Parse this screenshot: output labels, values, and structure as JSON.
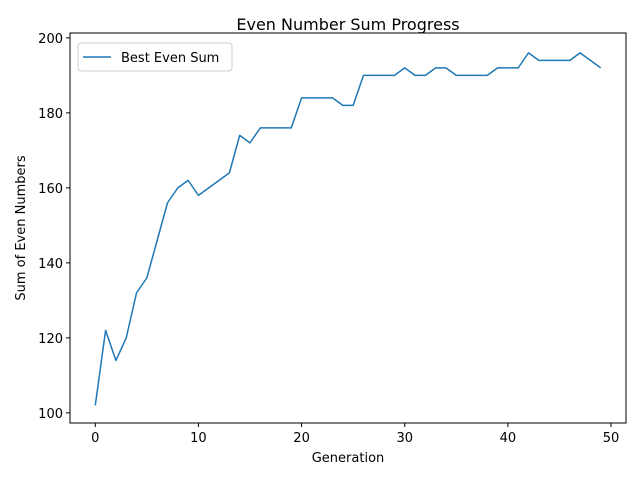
{
  "chart_data": {
    "type": "line",
    "title": "Even Number Sum Progress",
    "xlabel": "Generation",
    "ylabel": "Sum of Even Numbers",
    "xlim": [
      -2.45,
      51.45
    ],
    "ylim": [
      97.3,
      201.3
    ],
    "xticks": [
      0,
      10,
      20,
      30,
      40,
      50
    ],
    "yticks": [
      100,
      120,
      140,
      160,
      180,
      200
    ],
    "grid": false,
    "legend_position": "top-left",
    "x": [
      0,
      1,
      2,
      3,
      4,
      5,
      6,
      7,
      8,
      9,
      10,
      11,
      12,
      13,
      14,
      15,
      16,
      17,
      18,
      19,
      20,
      21,
      22,
      23,
      24,
      25,
      26,
      27,
      28,
      29,
      30,
      31,
      32,
      33,
      34,
      35,
      36,
      37,
      38,
      39,
      40,
      41,
      42,
      43,
      44,
      45,
      46,
      47,
      48,
      49
    ],
    "series": [
      {
        "name": "Best Even Sum",
        "color": "#1f77b4",
        "values": [
          102,
          122,
          114,
          120,
          132,
          136,
          146,
          156,
          160,
          162,
          158,
          160,
          162,
          164,
          174,
          172,
          176,
          176,
          176,
          176,
          184,
          184,
          184,
          184,
          182,
          182,
          190,
          190,
          190,
          190,
          192,
          190,
          190,
          192,
          192,
          190,
          190,
          190,
          190,
          192,
          192,
          192,
          196,
          194,
          194,
          194,
          194,
          196,
          194,
          192
        ]
      }
    ]
  }
}
